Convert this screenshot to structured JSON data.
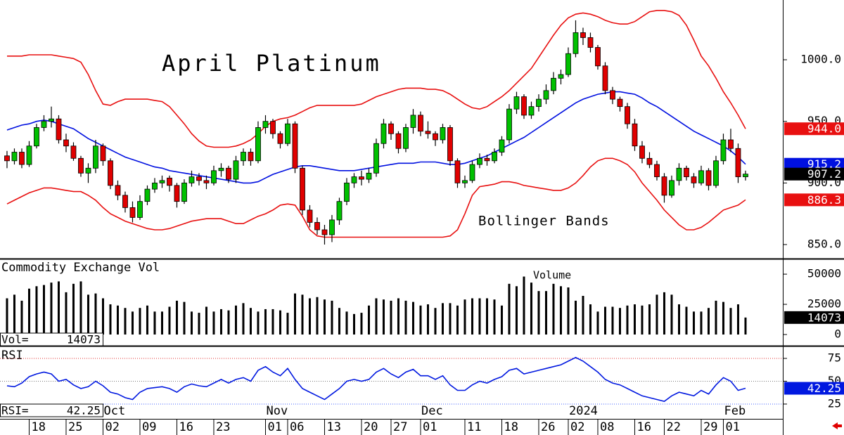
{
  "chart_data": [
    {
      "type": "candlestick",
      "title": "April Platinum",
      "annotation": "Bollinger Bands",
      "up_color": "#00c000",
      "down_color": "#e00000",
      "band_color": "#e81010",
      "middle_color": "#0010e0",
      "xlim": [
        -0.95,
        105.05
      ],
      "ylim": [
        838.6,
        1048.5
      ],
      "yticks": [
        {
          "value": 850,
          "label": "850.0"
        },
        {
          "value": 900,
          "label": "900.0"
        },
        {
          "value": 950,
          "label": "950.0"
        },
        {
          "value": 1000,
          "label": "1000.0"
        }
      ],
      "upper_last_label": "944.0",
      "ohlc": [
        [
          922,
          926,
          912,
          918
        ],
        [
          918,
          928,
          915,
          925
        ],
        [
          925,
          928,
          912,
          915
        ],
        [
          915,
          934,
          913,
          930
        ],
        [
          930,
          948,
          928,
          945
        ],
        [
          945,
          955,
          942,
          950
        ],
        [
          950,
          962,
          945,
          952
        ],
        [
          952,
          955,
          932,
          935
        ],
        [
          935,
          940,
          925,
          930
        ],
        [
          930,
          933,
          918,
          920
        ],
        [
          920,
          922,
          905,
          908
        ],
        [
          908,
          916,
          900,
          912
        ],
        [
          912,
          935,
          908,
          930
        ],
        [
          930,
          932,
          914,
          918
        ],
        [
          918,
          920,
          895,
          898
        ],
        [
          898,
          902,
          886,
          890
        ],
        [
          890,
          893,
          876,
          880
        ],
        [
          880,
          885,
          868,
          872
        ],
        [
          872,
          890,
          870,
          885
        ],
        [
          885,
          898,
          882,
          895
        ],
        [
          895,
          904,
          892,
          900
        ],
        [
          900,
          906,
          896,
          902
        ],
        [
          904,
          906,
          893,
          898
        ],
        [
          898,
          900,
          880,
          885
        ],
        [
          885,
          903,
          883,
          900
        ],
        [
          900,
          910,
          897,
          905
        ],
        [
          905,
          908,
          898,
          902
        ],
        [
          902,
          906,
          895,
          900
        ],
        [
          900,
          914,
          898,
          910
        ],
        [
          910,
          916,
          905,
          912
        ],
        [
          912,
          914,
          900,
          903
        ],
        [
          903,
          922,
          900,
          918
        ],
        [
          918,
          928,
          914,
          925
        ],
        [
          925,
          928,
          914,
          918
        ],
        [
          918,
          950,
          916,
          945
        ],
        [
          945,
          955,
          940,
          950
        ],
        [
          950,
          952,
          936,
          940
        ],
        [
          940,
          942,
          928,
          932
        ],
        [
          932,
          952,
          930,
          948
        ],
        [
          948,
          950,
          908,
          912
        ],
        [
          912,
          914,
          874,
          878
        ],
        [
          878,
          882,
          864,
          868
        ],
        [
          868,
          872,
          858,
          862
        ],
        [
          862,
          866,
          850,
          858
        ],
        [
          858,
          874,
          852,
          870
        ],
        [
          870,
          888,
          866,
          885
        ],
        [
          885,
          904,
          882,
          900
        ],
        [
          900,
          908,
          896,
          905
        ],
        [
          905,
          910,
          898,
          903
        ],
        [
          903,
          912,
          900,
          908
        ],
        [
          908,
          936,
          905,
          932
        ],
        [
          932,
          952,
          928,
          948
        ],
        [
          948,
          950,
          935,
          940
        ],
        [
          940,
          942,
          924,
          928
        ],
        [
          928,
          948,
          925,
          945
        ],
        [
          945,
          960,
          940,
          955
        ],
        [
          955,
          958,
          938,
          942
        ],
        [
          942,
          950,
          936,
          940
        ],
        [
          940,
          942,
          930,
          935
        ],
        [
          935,
          948,
          932,
          945
        ],
        [
          945,
          947,
          914,
          918
        ],
        [
          918,
          920,
          896,
          900
        ],
        [
          900,
          906,
          896,
          902
        ],
        [
          902,
          918,
          900,
          915
        ],
        [
          915,
          924,
          912,
          920
        ],
        [
          920,
          923,
          914,
          918
        ],
        [
          918,
          928,
          916,
          925
        ],
        [
          925,
          938,
          922,
          935
        ],
        [
          935,
          964,
          932,
          960
        ],
        [
          960,
          974,
          956,
          970
        ],
        [
          970,
          972,
          952,
          955
        ],
        [
          955,
          966,
          952,
          962
        ],
        [
          962,
          972,
          958,
          968
        ],
        [
          968,
          980,
          964,
          975
        ],
        [
          975,
          990,
          972,
          985
        ],
        [
          985,
          992,
          980,
          988
        ],
        [
          988,
          1010,
          986,
          1005
        ],
        [
          1005,
          1032,
          1002,
          1022
        ],
        [
          1022,
          1026,
          1012,
          1018
        ],
        [
          1018,
          1022,
          1006,
          1010
        ],
        [
          1010,
          1012,
          992,
          995
        ],
        [
          995,
          998,
          972,
          975
        ],
        [
          975,
          978,
          964,
          968
        ],
        [
          968,
          970,
          958,
          962
        ],
        [
          962,
          965,
          944,
          948
        ],
        [
          948,
          952,
          926,
          930
        ],
        [
          930,
          934,
          916,
          920
        ],
        [
          920,
          925,
          912,
          915
        ],
        [
          915,
          918,
          902,
          905
        ],
        [
          905,
          908,
          884,
          890
        ],
        [
          890,
          906,
          888,
          902
        ],
        [
          902,
          916,
          898,
          912
        ],
        [
          912,
          914,
          902,
          905
        ],
        [
          905,
          908,
          896,
          900
        ],
        [
          900,
          914,
          898,
          910
        ],
        [
          910,
          912,
          894,
          898
        ],
        [
          898,
          922,
          896,
          918
        ],
        [
          918,
          940,
          915,
          935
        ],
        [
          935,
          944,
          925,
          928
        ],
        [
          928,
          932,
          900,
          905
        ],
        [
          905,
          910,
          902,
          907.2
        ]
      ],
      "upper_band": [
        1003,
        1003,
        1003,
        1004,
        1004,
        1004,
        1004,
        1003,
        1002,
        1001,
        998,
        988,
        975,
        964,
        963,
        966,
        968,
        968,
        968,
        968,
        967,
        966,
        962,
        955,
        948,
        940,
        934,
        930,
        929,
        929,
        929,
        930,
        932,
        935,
        940,
        946,
        950,
        952,
        953,
        955,
        958,
        961,
        963,
        963,
        963,
        963,
        963,
        963,
        964,
        967,
        970,
        972,
        974,
        976,
        977,
        977,
        977,
        976,
        976,
        975,
        972,
        968,
        964,
        961,
        960,
        962,
        966,
        970,
        975,
        981,
        987,
        993,
        1002,
        1011,
        1020,
        1028,
        1034,
        1037,
        1038,
        1037,
        1035,
        1032,
        1030,
        1029,
        1029,
        1031,
        1035,
        1039,
        1040,
        1040,
        1039,
        1036,
        1028,
        1016,
        1003,
        995,
        985,
        974,
        965,
        955,
        944.0
      ],
      "middle_band": [
        943,
        945,
        947,
        948,
        950,
        951,
        950,
        948,
        946,
        944,
        940,
        936,
        933,
        930,
        927,
        924,
        921,
        919,
        917,
        915,
        913,
        912,
        910,
        909,
        908,
        907,
        906,
        905,
        904,
        903,
        902,
        901,
        900,
        900,
        901,
        904,
        907,
        909,
        911,
        913,
        914,
        914,
        913,
        912,
        911,
        910,
        910,
        910,
        911,
        912,
        913,
        914,
        915,
        916,
        916,
        916,
        917,
        917,
        917,
        916,
        915,
        915,
        916,
        918,
        920,
        922,
        925,
        928,
        931,
        934,
        937,
        941,
        945,
        949,
        953,
        957,
        961,
        965,
        968,
        970,
        972,
        973,
        974,
        974,
        973,
        972,
        969,
        965,
        962,
        958,
        954,
        950,
        946,
        942,
        939,
        936,
        933,
        930,
        926,
        921,
        915.2
      ],
      "lower_band": [
        883,
        886,
        889,
        892,
        894,
        896,
        896,
        895,
        894,
        893,
        893,
        890,
        886,
        880,
        875,
        872,
        869,
        867,
        865,
        863,
        862,
        862,
        863,
        865,
        867,
        869,
        870,
        871,
        871,
        871,
        869,
        867,
        867,
        870,
        873,
        875,
        878,
        882,
        883,
        882,
        873,
        862,
        857,
        856,
        856,
        856,
        856,
        856,
        856,
        856,
        856,
        856,
        856,
        856,
        856,
        856,
        856,
        856,
        856,
        856,
        857,
        862,
        875,
        890,
        897,
        898,
        899,
        901,
        901,
        900,
        898,
        897,
        896,
        895,
        894,
        894,
        896,
        900,
        906,
        913,
        918,
        920,
        920,
        918,
        915,
        909,
        900,
        893,
        886,
        878,
        872,
        866,
        862,
        862,
        864,
        868,
        873,
        878,
        880,
        882,
        886.3
      ]
    },
    {
      "type": "bar",
      "title": "Commodity Exchange Vol",
      "annotation": "Volume",
      "readout_label": "Vol=",
      "color": "#000000",
      "xlim": [
        -0.95,
        105.05
      ],
      "ylim": [
        -9300,
        61700
      ],
      "yticks": [
        0,
        25000,
        50000
      ],
      "values": [
        30000,
        33000,
        28000,
        38000,
        40000,
        41000,
        43000,
        44000,
        35000,
        42000,
        44000,
        33000,
        34000,
        30000,
        25000,
        24000,
        22000,
        19000,
        22000,
        24000,
        19000,
        19000,
        23000,
        28000,
        27000,
        19000,
        18000,
        23000,
        19000,
        21000,
        20000,
        24000,
        26000,
        22000,
        19000,
        21000,
        21000,
        20000,
        18000,
        34000,
        33000,
        30000,
        31000,
        29000,
        28000,
        22000,
        19000,
        17000,
        18000,
        24000,
        30000,
        29000,
        28000,
        30000,
        28000,
        27000,
        24000,
        25000,
        22000,
        26000,
        26000,
        24000,
        29000,
        30000,
        30000,
        30000,
        29000,
        24000,
        42000,
        40000,
        48000,
        43000,
        36000,
        36000,
        42000,
        40000,
        39000,
        28000,
        32000,
        25000,
        19000,
        23000,
        23000,
        22000,
        24000,
        25000,
        24000,
        25000,
        33000,
        35000,
        33000,
        25000,
        23000,
        19000,
        19000,
        22000,
        28000,
        27000,
        22000,
        25000,
        14073
      ]
    },
    {
      "type": "line",
      "title": "RSI",
      "readout_label": "RSI=",
      "color": "#0018e0",
      "xlim": [
        -0.95,
        105.05
      ],
      "ylim": [
        8.8,
        87.3
      ],
      "yticks": [
        25,
        50,
        75
      ],
      "grid": true,
      "values": [
        45,
        44,
        48,
        55,
        58,
        60,
        58,
        50,
        52,
        46,
        42,
        44,
        50,
        45,
        38,
        36,
        32,
        30,
        38,
        42,
        43,
        44,
        42,
        38,
        44,
        47,
        45,
        44,
        48,
        52,
        48,
        52,
        54,
        50,
        62,
        66,
        60,
        56,
        64,
        52,
        42,
        38,
        34,
        30,
        36,
        42,
        50,
        52,
        50,
        52,
        60,
        64,
        58,
        54,
        60,
        63,
        56,
        56,
        52,
        56,
        46,
        40,
        40,
        46,
        50,
        48,
        52,
        55,
        62,
        64,
        58,
        60,
        62,
        64,
        66,
        68,
        72,
        76,
        72,
        66,
        60,
        52,
        48,
        46,
        42,
        38,
        34,
        32,
        30,
        28,
        34,
        38,
        36,
        34,
        40,
        36,
        46,
        54,
        50,
        40,
        42.25
      ],
      "xticks": [
        {
          "value": 3,
          "label": "18"
        },
        {
          "value": 8,
          "label": "25"
        },
        {
          "value": 13,
          "label": "02"
        },
        {
          "value": 18,
          "label": "09"
        },
        {
          "value": 23,
          "label": "16"
        },
        {
          "value": 28,
          "label": "23"
        },
        {
          "value": 35,
          "label": "01"
        },
        {
          "value": 38,
          "label": "06"
        },
        {
          "value": 43,
          "label": "13"
        },
        {
          "value": 48,
          "label": "20"
        },
        {
          "value": 52,
          "label": "27"
        },
        {
          "value": 56,
          "label": "01"
        },
        {
          "value": 62,
          "label": "11"
        },
        {
          "value": 67,
          "label": "18"
        },
        {
          "value": 72,
          "label": "26"
        },
        {
          "value": 76,
          "label": "02"
        },
        {
          "value": 80,
          "label": "08"
        },
        {
          "value": 85,
          "label": "16"
        },
        {
          "value": 89,
          "label": "22"
        },
        {
          "value": 94,
          "label": "29"
        },
        {
          "value": 97,
          "label": "01"
        }
      ],
      "month_ticks": [
        {
          "value": 13,
          "label": "Oct"
        },
        {
          "value": 35,
          "label": "Nov"
        },
        {
          "value": 56,
          "label": "Dec"
        },
        {
          "value": 76,
          "label": "2024"
        },
        {
          "value": 97,
          "label": "Feb"
        }
      ]
    }
  ]
}
